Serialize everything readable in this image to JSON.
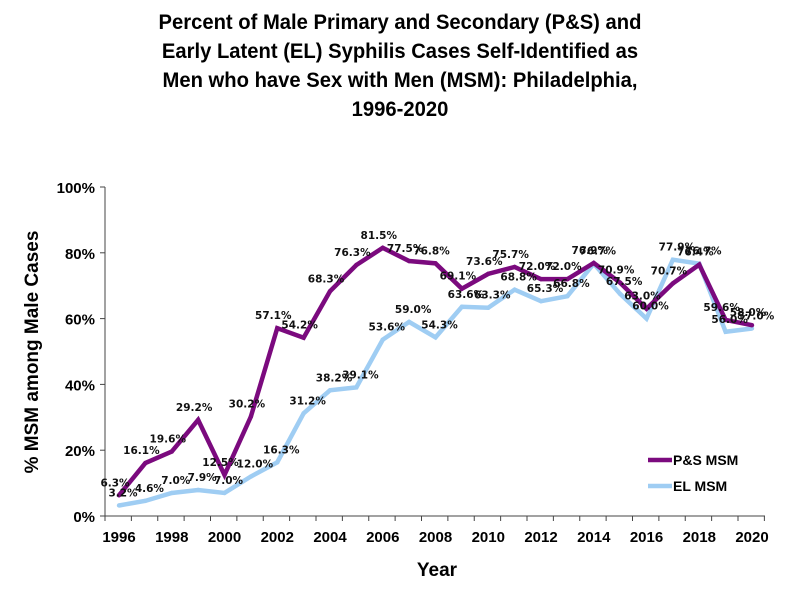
{
  "chart_data": {
    "type": "line",
    "title": "Percent of Male Primary and Secondary (P&S) and\nEarly Latent (EL) Syphilis Cases Self-Identified as\nMen who have Sex with Men (MSM): Philadelphia,\n1996-2020",
    "xlabel": "Year",
    "ylabel": "% MSM among Male Cases",
    "x": [
      1996,
      1997,
      1998,
      1999,
      2000,
      2001,
      2002,
      2003,
      2004,
      2005,
      2006,
      2007,
      2008,
      2009,
      2010,
      2011,
      2012,
      2013,
      2014,
      2015,
      2016,
      2017,
      2018,
      2019,
      2020
    ],
    "x_tick_labels": [
      "1996",
      "1998",
      "2000",
      "2002",
      "2004",
      "2006",
      "2008",
      "2010",
      "2012",
      "2014",
      "2016",
      "2018",
      "2020"
    ],
    "y_tick_labels": [
      "0%",
      "20%",
      "40%",
      "60%",
      "80%",
      "100%"
    ],
    "ylim": [
      0,
      100
    ],
    "grid": false,
    "legend_position": "bottom-right",
    "series": [
      {
        "name": "P&S MSM",
        "color": "#7b0a7e",
        "values": [
          6.3,
          16.1,
          19.6,
          29.2,
          12.5,
          30.2,
          57.1,
          54.2,
          68.3,
          76.3,
          81.5,
          77.5,
          76.8,
          69.1,
          73.6,
          75.7,
          72.0,
          72.0,
          76.9,
          70.9,
          63.0,
          70.7,
          76.4,
          59.6,
          58.0
        ],
        "labels": [
          "6.3%",
          "16.1%",
          "19.6%",
          "29.2%",
          "12.5%",
          "30.2%",
          "57.1%",
          "54.2%",
          "68.3%",
          "76.3%",
          "81.5%",
          "77.5%",
          "76.8%",
          "69.1%",
          "73.6%",
          "75.7%",
          "72.0%",
          "72.0%",
          "76.9%",
          "70.9%",
          "63.0%",
          "70.7%",
          "76.4%",
          "59.6%",
          "58.0%"
        ]
      },
      {
        "name": "EL MSM",
        "color": "#9fcdf3",
        "values": [
          3.2,
          4.6,
          7.0,
          7.9,
          7.0,
          12.0,
          16.3,
          31.2,
          38.2,
          39.1,
          53.6,
          59.0,
          54.3,
          63.6,
          63.3,
          68.8,
          65.3,
          66.8,
          76.7,
          67.5,
          60.0,
          77.9,
          76.7,
          56.0,
          57.0
        ],
        "labels": [
          "3.2%",
          "4.6%",
          "7.0%",
          "7.9%",
          "7.0%",
          "12.0%",
          "16.3%",
          "31.2%",
          "38.2%",
          "39.1%",
          "53.6%",
          "59.0%",
          "54.3%",
          "63.6%",
          "63.3%",
          "68.8%",
          "65.3%",
          "66.8%",
          "76.7%",
          "67.5%",
          "60.0%",
          "77.9%",
          "76.7%",
          "56.0%",
          "57.0%"
        ]
      }
    ]
  }
}
